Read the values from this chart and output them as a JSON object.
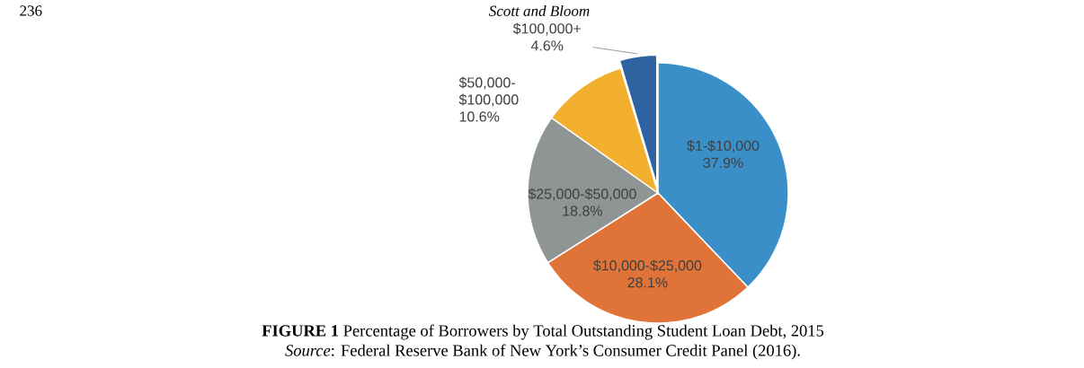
{
  "chart_data": {
    "type": "pie",
    "title": "**FIGURE 1** Percentage of Borrowers by Total Outstanding Student Loan Debt, 2015",
    "categories": [
      "$1-$10,000",
      "$10,000-$25,000",
      "$25,000-$50,000",
      "$50,000-$100,000",
      "$100,000+"
    ],
    "values": [
      37.9,
      28.1,
      18.8,
      10.6,
      4.6
    ],
    "value_labels": [
      "37.9%",
      "28.1%",
      "18.8%",
      "10.6%",
      "4.6%"
    ],
    "colors": [
      "#3a8fc9",
      "#e07438",
      "#8f9595",
      "#f2b02e",
      "#2f62a0"
    ],
    "annotations": [
      "236",
      "Scott and Bloom",
      "*Source*: Federal Reserve Bank of New York’s Consumer Credit Panel (2016)."
    ]
  }
}
